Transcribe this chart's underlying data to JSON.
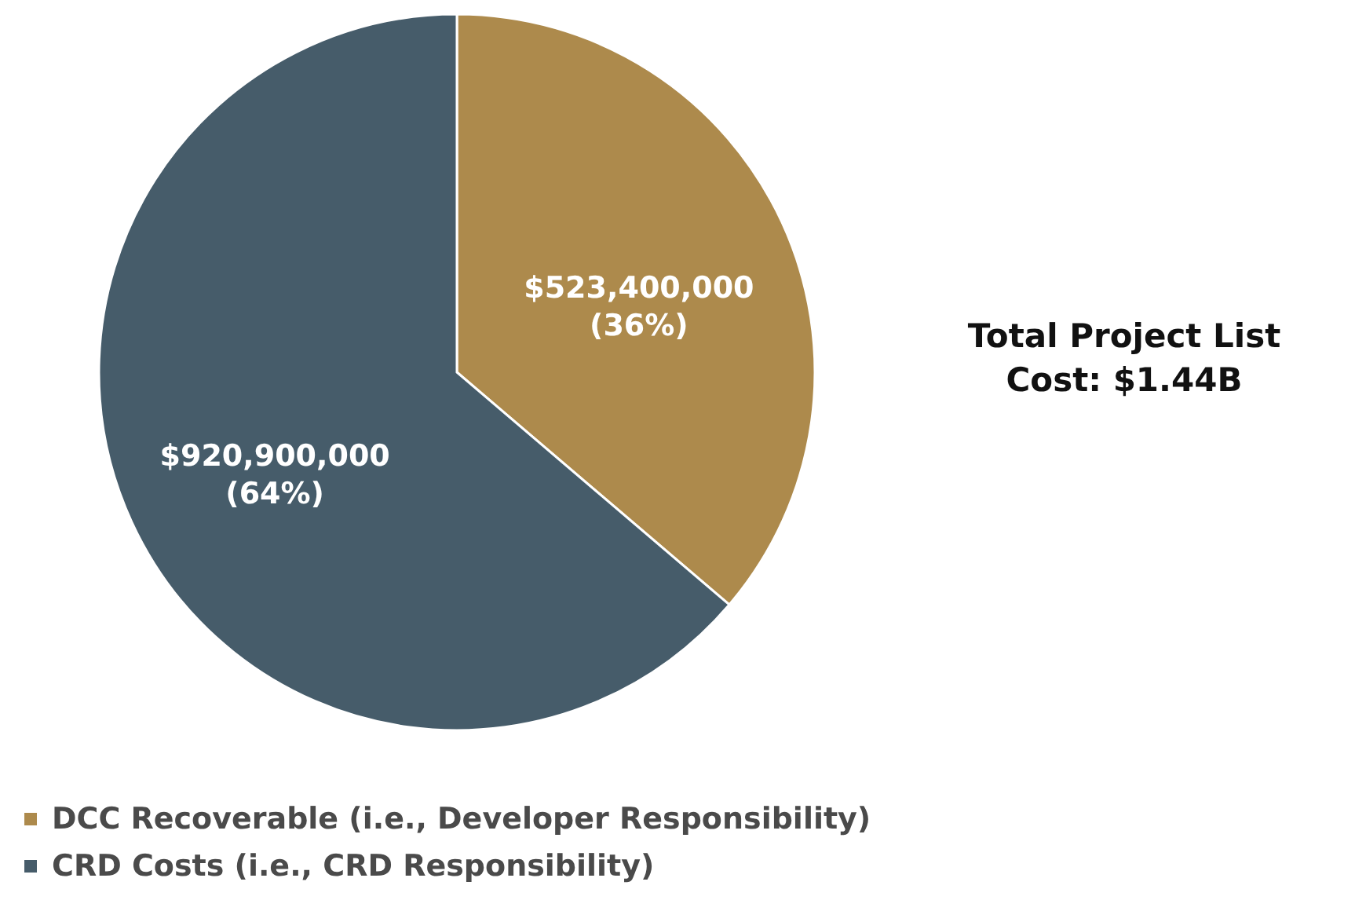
{
  "chart_data": {
    "type": "pie",
    "categories": [
      "DCC Recoverable (i.e., Developer Responsibility)",
      "CRD Costs (i.e., CRD Responsibility)"
    ],
    "values": [
      523400000,
      920900000
    ],
    "colors": [
      "#ad8a4c",
      "#465c6a"
    ],
    "value_labels": [
      "$523,400,000 (36%)",
      "$920,900,000 (64%)"
    ],
    "annotations": [
      "Total Project List Cost: $1.44B"
    ],
    "legend": "bottom left"
  }
}
